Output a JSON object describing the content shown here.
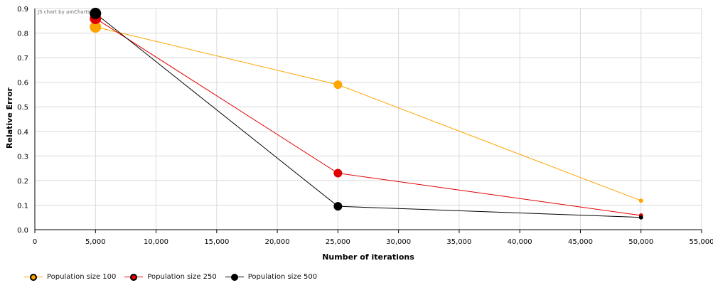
{
  "credit": "JS chart by amCharts",
  "chart_data": {
    "type": "line",
    "title": "",
    "xlabel": "Number of iterations",
    "ylabel": "Relative Error",
    "xlim": [
      0,
      55000
    ],
    "ylim": [
      0,
      0.9
    ],
    "xticks": [
      0,
      5000,
      10000,
      15000,
      20000,
      25000,
      30000,
      35000,
      40000,
      45000,
      50000,
      55000
    ],
    "xtick_labels": [
      "0",
      "5,000",
      "10,000",
      "15,000",
      "20,000",
      "25,000",
      "30,000",
      "35,000",
      "40,000",
      "45,000",
      "50,000",
      "55,000"
    ],
    "yticks": [
      0,
      0.1,
      0.2,
      0.3,
      0.4,
      0.5,
      0.6,
      0.7,
      0.8,
      0.9
    ],
    "ytick_labels": [
      "0.0",
      "0.1",
      "0.2",
      "0.3",
      "0.4",
      "0.5",
      "0.6",
      "0.7",
      "0.8",
      "0.9"
    ],
    "grid": true,
    "legend_position": "bottom-left",
    "x": [
      5000,
      25000,
      50000
    ],
    "series": [
      {
        "name": "Population size 100",
        "color": "#FFA500",
        "values": [
          0.825,
          0.59,
          0.118
        ]
      },
      {
        "name": "Population size 250",
        "color": "#E00000",
        "values": [
          0.86,
          0.23,
          0.058
        ]
      },
      {
        "name": "Population size 500",
        "color": "#000000",
        "values": [
          0.88,
          0.095,
          0.05
        ]
      }
    ]
  }
}
